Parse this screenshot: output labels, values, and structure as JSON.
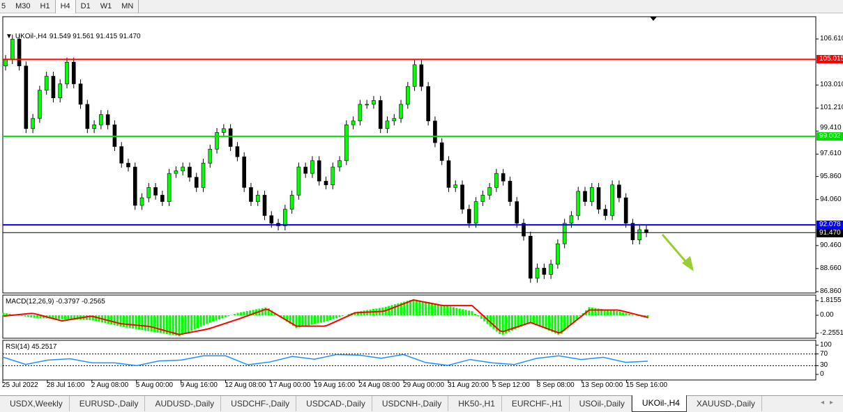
{
  "toolbar": {
    "timeframes": [
      "5",
      "M30",
      "H1",
      "H4",
      "D1",
      "W1",
      "MN"
    ],
    "active": "H4"
  },
  "chart": {
    "title": "UKOil-,H4",
    "ohlc": "91.549 91.561 91.415 91.470"
  },
  "indicators": {
    "macd_label": "MACD(12,26,9) -0.3797 -0.2565",
    "rsi_label": "RSI(14) 45.2517"
  },
  "tabs": [
    "USDX,Weekly",
    "EURUSD-,Daily",
    "AUDUSD-,Daily",
    "USDCHF-,Daily",
    "USDCAD-,Daily",
    "USDCNH-,Daily",
    "HK50-,H1",
    "EURCHF-,H1",
    "USOil-,Daily",
    "UKOil-,H4",
    "XAUUSD-,Daily"
  ],
  "active_tab": "UKOil-,H4",
  "chart_data": {
    "type": "candlestick",
    "symbol": "UKOil-",
    "timeframe": "H4",
    "price_ticks": [
      "106.610",
      "103.010",
      "101.210",
      "99.410",
      "97.610",
      "95.860",
      "94.060",
      "90.460",
      "88.660",
      "86.860"
    ],
    "ylim": [
      86.86,
      106.61
    ],
    "levels": [
      {
        "label": "105.015",
        "value": 105.015,
        "color": "#ff0000"
      },
      {
        "label": "99.002",
        "value": 99.002,
        "color": "#00e000"
      },
      {
        "label": "92.078",
        "value": 92.078,
        "color": "#0000ff"
      },
      {
        "label": "91.470",
        "value": 91.47,
        "color": "#000000"
      }
    ],
    "time_ticks": [
      "25 Jul 2022",
      "28 Jul 16:00",
      "2 Aug 08:00",
      "5 Aug 00:00",
      "9 Aug 16:00",
      "12 Aug 08:00",
      "17 Aug 00:00",
      "19 Aug 16:00",
      "24 Aug 08:00",
      "29 Aug 00:00",
      "31 Aug 20:00",
      "5 Sep 12:00",
      "8 Sep 08:00",
      "13 Sep 00:00",
      "15 Sep 16:00"
    ],
    "closes": [
      105.0,
      106.6,
      104.5,
      99.6,
      100.4,
      102.6,
      103.7,
      102.0,
      103.1,
      104.8,
      103.1,
      101.5,
      99.6,
      99.9,
      100.7,
      99.9,
      98.2,
      96.9,
      96.6,
      93.6,
      94.2,
      95.0,
      94.4,
      93.9,
      96.1,
      96.3,
      96.6,
      95.8,
      95.0,
      96.9,
      98.0,
      99.3,
      99.6,
      98.2,
      97.4,
      95.0,
      93.9,
      94.4,
      92.8,
      92.2,
      92.0,
      93.3,
      94.4,
      96.6,
      96.1,
      97.1,
      95.5,
      95.2,
      96.6,
      97.1,
      99.9,
      100.2,
      101.5,
      101.5,
      101.8,
      99.6,
      100.2,
      100.4,
      101.5,
      102.9,
      104.6,
      102.9,
      100.2,
      98.5,
      97.1,
      95.0,
      95.2,
      93.3,
      92.2,
      93.9,
      94.4,
      95.0,
      96.1,
      95.5,
      93.9,
      92.2,
      91.2,
      87.9,
      88.7,
      88.2,
      89.0,
      90.6,
      92.2,
      92.8,
      94.7,
      93.9,
      95.0,
      93.3,
      92.8,
      95.2,
      94.2,
      92.2,
      90.9,
      91.7,
      91.47
    ],
    "bull_color": "#00ff00",
    "bear_color": "#000000",
    "arrow_color": "#9acd32",
    "macd": {
      "params": "12,26,9",
      "ticks": [
        "1.8155",
        "0.00",
        "-2.2551"
      ],
      "ylim": [
        -2.2551,
        1.8155
      ],
      "signal": [
        -0.1,
        0.25,
        -0.7,
        -0.1,
        -1.05,
        -1.4,
        -2.4,
        -1.7,
        -0.5,
        0.8,
        -1.35,
        -1.35,
        0.3,
        0.5,
        1.9,
        1.2,
        1.2,
        -2.1,
        -0.9,
        -2.25,
        0.65,
        0.65,
        -0.26
      ],
      "main": [
        0.3,
        -0.3,
        -0.5,
        -0.6,
        -1.4,
        -2.0,
        -2.6,
        -1.0,
        0.3,
        1.0,
        -1.6,
        -0.8,
        0.4,
        1.0,
        2.0,
        1.3,
        0.5,
        -2.5,
        -0.9,
        -2.5,
        1.0,
        0.5,
        -0.38
      ],
      "hist_color": "#00ff00",
      "signal_color": "#ff0000"
    },
    "rsi": {
      "period": 14,
      "ticks": [
        "100",
        "70",
        "30",
        "0"
      ],
      "levels": [
        70,
        30
      ],
      "ylim": [
        0,
        100
      ],
      "values": [
        58.6,
        34.4,
        49,
        53.5,
        39.5,
        39.5,
        30,
        46,
        49,
        63.6,
        63.6,
        33,
        42.7,
        61.7,
        52,
        68,
        66,
        55.4,
        68,
        40.7,
        31,
        51,
        39.5,
        34,
        55,
        63.6,
        51,
        58.6,
        41.4,
        45.25
      ],
      "color": "#1e90ff"
    }
  }
}
